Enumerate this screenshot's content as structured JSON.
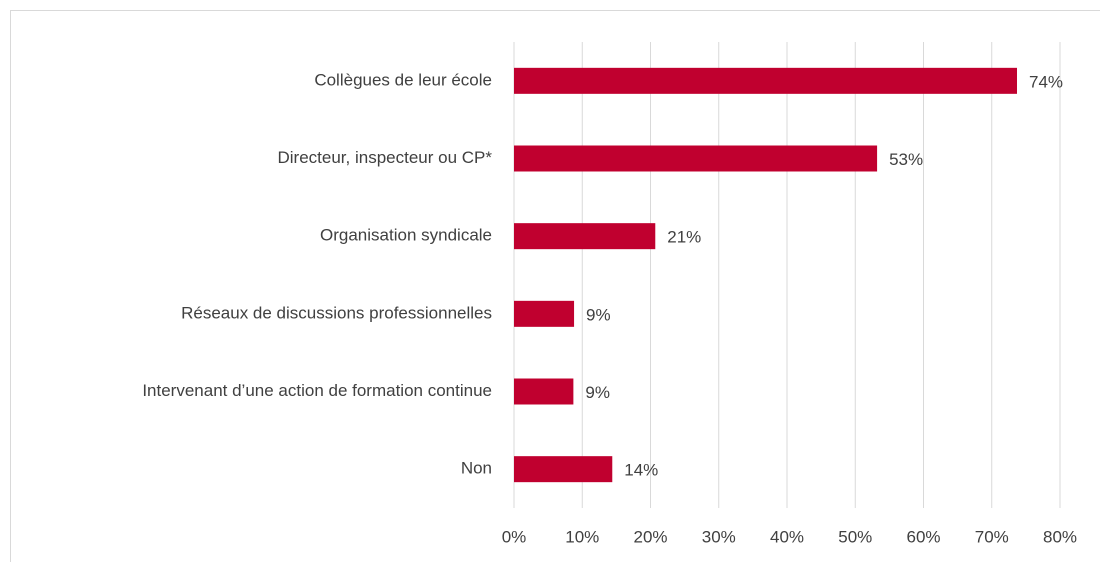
{
  "chart_data": {
    "type": "bar",
    "orientation": "horizontal",
    "categories": [
      "Collègues de leur école",
      "Directeur, inspecteur ou CP*",
      "Organisation syndicale",
      "Réseaux de discussions professionnelles",
      "Intervenant d’une action de formation continue",
      "Non"
    ],
    "values": [
      73.7,
      53.2,
      20.7,
      8.8,
      8.7,
      14.4
    ],
    "value_labels": [
      "74%",
      "53%",
      "21%",
      "9%",
      "9%",
      "14%"
    ],
    "color": "#c0002f",
    "xlim": [
      0,
      80
    ],
    "xticks": [
      {
        "value": 0,
        "label": "0%"
      },
      {
        "value": 10,
        "label": "10%"
      },
      {
        "value": 20,
        "label": "20%"
      },
      {
        "value": 30,
        "label": "30%"
      },
      {
        "value": 40,
        "label": "40%"
      },
      {
        "value": 50,
        "label": "50%"
      },
      {
        "value": 60,
        "label": "60%"
      },
      {
        "value": 70,
        "label": "70%"
      },
      {
        "value": 80,
        "label": "80%"
      }
    ],
    "grid": true
  }
}
